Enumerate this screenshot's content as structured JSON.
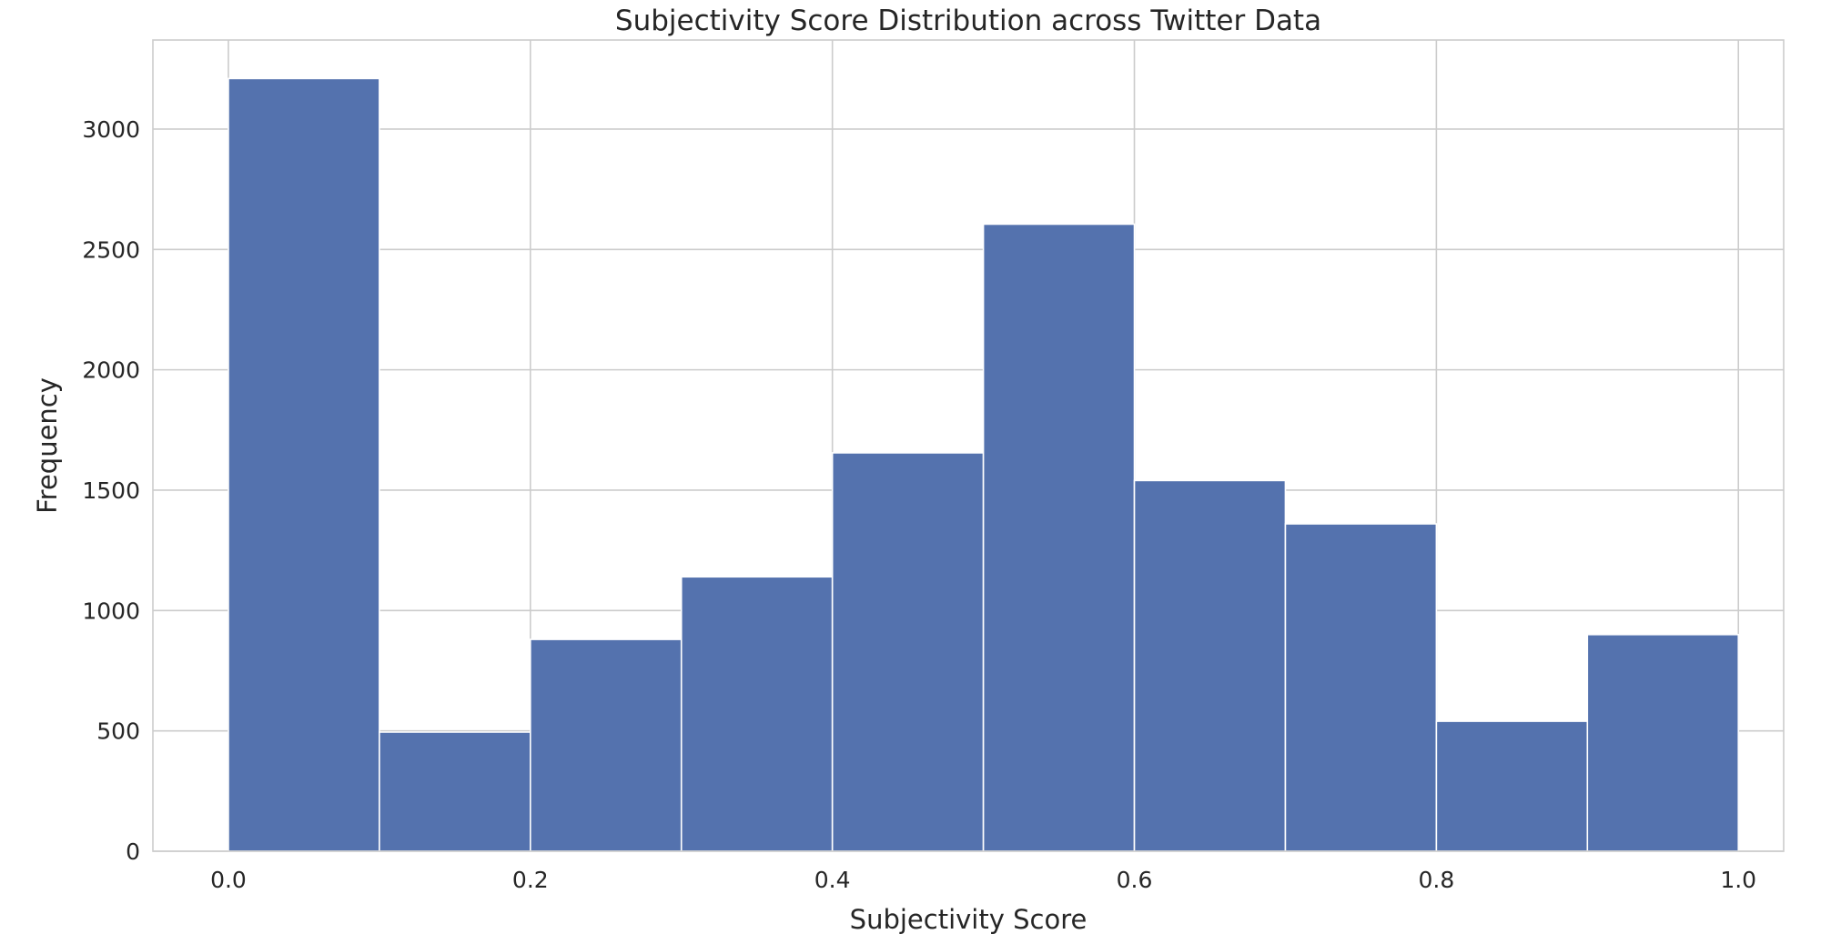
{
  "chart_data": {
    "type": "bar",
    "title": "Subjectivity Score Distribution across Twitter Data",
    "xlabel": "Subjectivity Score",
    "ylabel": "Frequency",
    "bin_edges": [
      0.0,
      0.1,
      0.2,
      0.3,
      0.4,
      0.5,
      0.6,
      0.7,
      0.8,
      0.9,
      1.0
    ],
    "values": [
      3210,
      495,
      880,
      1140,
      1655,
      2605,
      1540,
      1360,
      540,
      900
    ],
    "xlim": [
      -0.05,
      1.03
    ],
    "ylim": [
      0,
      3370
    ],
    "x_ticks": [
      0.0,
      0.2,
      0.4,
      0.6,
      0.8,
      1.0
    ],
    "x_tick_labels": [
      "0.0",
      "0.2",
      "0.4",
      "0.6",
      "0.8",
      "1.0"
    ],
    "y_ticks": [
      0,
      500,
      1000,
      1500,
      2000,
      2500,
      3000
    ],
    "y_tick_labels": [
      "0",
      "500",
      "1000",
      "1500",
      "2000",
      "2500",
      "3000"
    ],
    "grid": true,
    "bar_color": "#5472ae",
    "grid_color": "#cccccc",
    "text_color": "#262626"
  }
}
